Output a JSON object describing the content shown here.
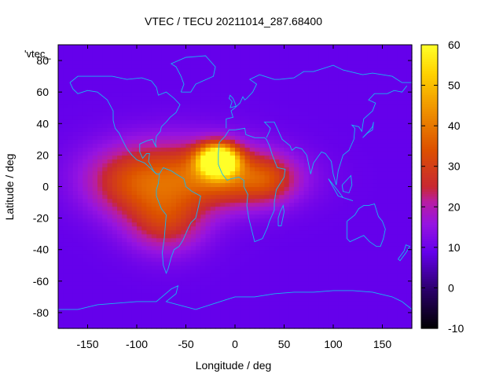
{
  "chart_data": {
    "type": "heatmap",
    "title": "VTEC / TECU 20211014_287.68400",
    "xlabel": "Longitude / deg",
    "ylabel": "Latitude / deg",
    "key_label": "'vtec_",
    "xlim": [
      -180,
      180
    ],
    "ylim": [
      -90,
      90
    ],
    "x_ticks": [
      -150,
      -100,
      -50,
      0,
      50,
      100,
      150
    ],
    "y_ticks": [
      -80,
      -60,
      -40,
      -20,
      0,
      20,
      40,
      60,
      80
    ],
    "colorbar": {
      "min": -10,
      "max": 60,
      "ticks": [
        -10,
        0,
        10,
        20,
        30,
        40,
        50,
        60
      ]
    },
    "background_value": 9,
    "hotspots": [
      {
        "lon": -17,
        "lat": 17,
        "value": 58,
        "sx": 14,
        "sy": 7
      },
      {
        "lon": -60,
        "lat": 8,
        "value": 22,
        "sx": 55,
        "sy": 16
      },
      {
        "lon": -70,
        "lat": -22,
        "value": 18,
        "sx": 28,
        "sy": 14
      },
      {
        "lon": 10,
        "lat": 5,
        "value": 16,
        "sx": 40,
        "sy": 12
      },
      {
        "lon": 35,
        "lat": 5,
        "value": 8,
        "sx": 18,
        "sy": 10
      },
      {
        "lon": -110,
        "lat": 0,
        "value": 10,
        "sx": 30,
        "sy": 15
      }
    ],
    "coastline_color": "#18b8f0"
  }
}
